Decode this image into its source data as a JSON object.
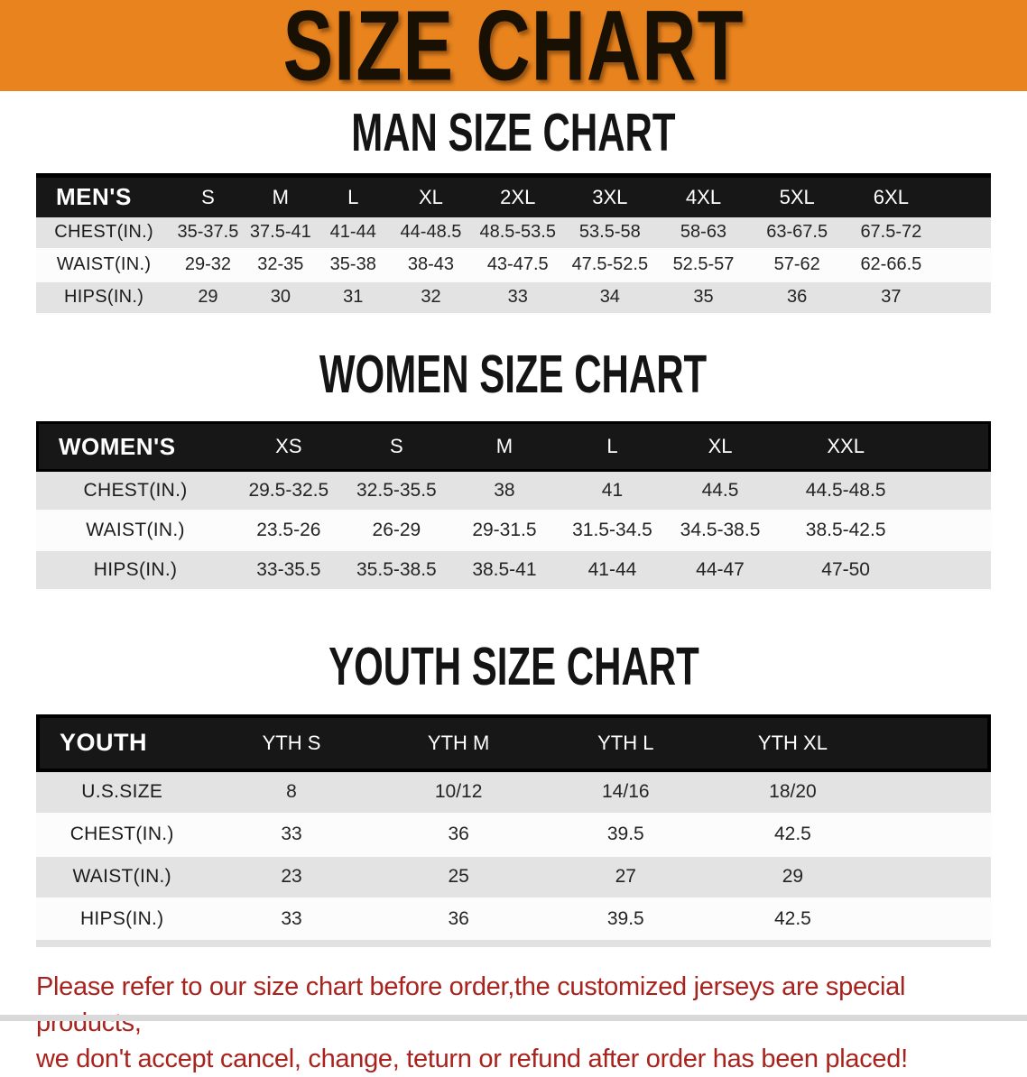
{
  "banner": {
    "title": "SIZE CHART",
    "bg_color": "#E8831E"
  },
  "sections": [
    {
      "heading": "MAN SIZE CHART",
      "header_label": "MEN'S",
      "columns": [
        "S",
        "M",
        "L",
        "XL",
        "2XL",
        "3XL",
        "4XL",
        "5XL",
        "6XL"
      ],
      "rows": [
        {
          "label": "CHEST(IN.)",
          "values": [
            "35-37.5",
            "37.5-41",
            "41-44",
            "44-48.5",
            "48.5-53.5",
            "53.5-58",
            "58-63",
            "63-67.5",
            "67.5-72"
          ]
        },
        {
          "label": "WAIST(IN.)",
          "values": [
            "29-32",
            "32-35",
            "35-38",
            "38-43",
            "43-47.5",
            "47.5-52.5",
            "52.5-57",
            "57-62",
            "62-66.5"
          ]
        },
        {
          "label": "HIPS(IN.)",
          "values": [
            "29",
            "30",
            "31",
            "32",
            "33",
            "34",
            "35",
            "36",
            "37"
          ]
        }
      ]
    },
    {
      "heading": "WOMEN SIZE CHART",
      "header_label": "WOMEN'S",
      "columns": [
        "XS",
        "S",
        "M",
        "L",
        "XL",
        "XXL"
      ],
      "rows": [
        {
          "label": "CHEST(IN.)",
          "values": [
            "29.5-32.5",
            "32.5-35.5",
            "38",
            "41",
            "44.5",
            "44.5-48.5"
          ]
        },
        {
          "label": "WAIST(IN.)",
          "values": [
            "23.5-26",
            "26-29",
            "29-31.5",
            "31.5-34.5",
            "34.5-38.5",
            "38.5-42.5"
          ]
        },
        {
          "label": "HIPS(IN.)",
          "values": [
            "33-35.5",
            "35.5-38.5",
            "38.5-41",
            "41-44",
            "44-47",
            "47-50"
          ]
        }
      ]
    },
    {
      "heading": "YOUTH SIZE CHART",
      "header_label": "YOUTH",
      "columns": [
        "YTH S",
        "YTH M",
        "YTH L",
        "YTH XL"
      ],
      "rows": [
        {
          "label": "U.S.SIZE",
          "values": [
            "8",
            "10/12",
            "14/16",
            "18/20"
          ]
        },
        {
          "label": "CHEST(IN.)",
          "values": [
            "33",
            "36",
            "39.5",
            "42.5"
          ]
        },
        {
          "label": "WAIST(IN.)",
          "values": [
            "23",
            "25",
            "27",
            "29"
          ]
        },
        {
          "label": "HIPS(IN.)",
          "values": [
            "33",
            "36",
            "39.5",
            "42.5"
          ]
        }
      ]
    }
  ],
  "footnote": {
    "color": "#A8231E",
    "lines": [
      "Please refer to our size chart before order,the customized jerseys are special products,",
      "we don't accept cancel, change, teturn or refund after order has been placed!"
    ]
  }
}
